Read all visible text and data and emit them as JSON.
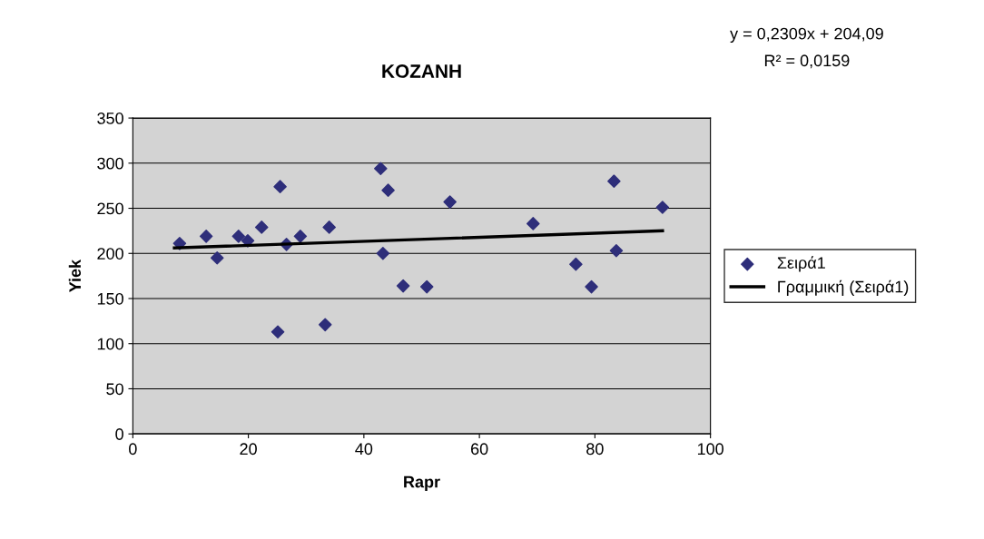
{
  "chart_data": {
    "type": "scatter",
    "title": "KOZANH",
    "xlabel": "Rapr",
    "ylabel": "Yiek",
    "xlim": [
      0,
      100
    ],
    "xticks": [
      0,
      20,
      40,
      60,
      80,
      100
    ],
    "ylim": [
      0,
      350
    ],
    "yticks": [
      0,
      50,
      100,
      150,
      200,
      250,
      300,
      350
    ],
    "grid": "y",
    "legend": "right",
    "annotations": [
      "y = 0,2309x + 204,09",
      "R² = 0,0159"
    ],
    "series": [
      {
        "name": "Σειρά1",
        "marker": "diamond",
        "color": "#2e2e7a",
        "x": [
          8.1,
          12.7,
          14.6,
          18.3,
          19.9,
          22.3,
          25.5,
          25.1,
          26.6,
          29.0,
          33.3,
          34.0,
          42.9,
          44.2,
          43.3,
          46.8,
          50.9,
          54.9,
          69.3,
          76.7,
          79.4,
          83.3,
          83.7,
          91.7
        ],
        "values": [
          211,
          219,
          195,
          219,
          214,
          229,
          274,
          113,
          210,
          219,
          121,
          229,
          294,
          270,
          200,
          164,
          163,
          257,
          233,
          188,
          163,
          280,
          203,
          251
        ]
      },
      {
        "name": "Γραμμική (Σειρά1)",
        "type": "line",
        "marker": "none",
        "color": "#000000",
        "x": [
          7.2,
          91.7
        ],
        "values": [
          206,
          225
        ]
      }
    ]
  }
}
